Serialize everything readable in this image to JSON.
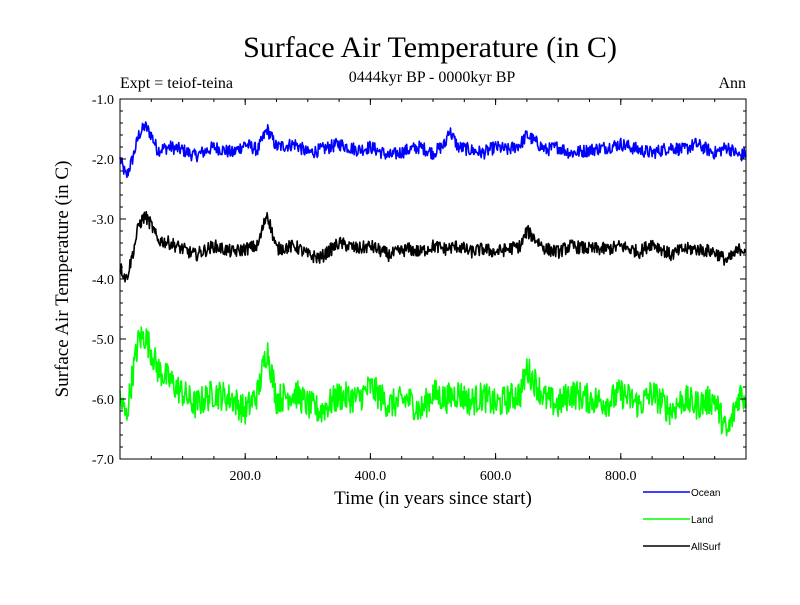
{
  "chart_data": {
    "type": "line",
    "title": "Surface Air Temperature (in C)",
    "subtitle": "0444kyr BP - 0000kyr BP",
    "expt_label": "Expt = teiof-teina",
    "season_label": "Ann",
    "xlabel": "Time (in years since start)",
    "ylabel": "Surface Air Temperature (in C)",
    "xlim": [
      0,
      1000
    ],
    "ylim": [
      -7.0,
      -1.0
    ],
    "x_ticks": [
      {
        "value": 200,
        "label": "200.0"
      },
      {
        "value": 400,
        "label": "400.0"
      },
      {
        "value": 600,
        "label": "600.0"
      },
      {
        "value": 800,
        "label": "800.0"
      }
    ],
    "y_ticks": [
      {
        "value": -1.0,
        "label": "-1.0"
      },
      {
        "value": -2.0,
        "label": "-2.0"
      },
      {
        "value": -3.0,
        "label": "-3.0"
      },
      {
        "value": -4.0,
        "label": "-4.0"
      },
      {
        "value": -5.0,
        "label": "-5.0"
      },
      {
        "value": -6.0,
        "label": "-6.0"
      },
      {
        "value": -7.0,
        "label": "-7.0"
      }
    ],
    "grid": false,
    "legend_position": "bottom-right, outside plot",
    "series": [
      {
        "name": "Ocean",
        "color": "#0000ff",
        "x": [
          0,
          10,
          20,
          30,
          40,
          50,
          60,
          80,
          100,
          120,
          150,
          180,
          200,
          220,
          235,
          250,
          280,
          300,
          320,
          350,
          380,
          400,
          430,
          460,
          480,
          500,
          520,
          525,
          540,
          560,
          580,
          600,
          620,
          640,
          650,
          680,
          700,
          720,
          750,
          780,
          800,
          830,
          850,
          880,
          900,
          920,
          950,
          970,
          990,
          1000
        ],
        "values": [
          -2.0,
          -2.3,
          -2.0,
          -1.6,
          -1.45,
          -1.6,
          -1.85,
          -1.8,
          -1.85,
          -1.95,
          -1.8,
          -1.9,
          -1.75,
          -1.85,
          -1.5,
          -1.8,
          -1.75,
          -1.9,
          -1.85,
          -1.75,
          -1.85,
          -1.8,
          -1.95,
          -1.85,
          -1.8,
          -1.9,
          -1.75,
          -1.5,
          -1.8,
          -1.85,
          -1.9,
          -1.8,
          -1.85,
          -1.75,
          -1.6,
          -1.85,
          -1.8,
          -1.9,
          -1.85,
          -1.8,
          -1.75,
          -1.85,
          -1.9,
          -1.8,
          -1.85,
          -1.75,
          -1.9,
          -1.8,
          -1.95,
          -1.9
        ]
      },
      {
        "name": "Land",
        "color": "#00ff00",
        "x": [
          0,
          10,
          20,
          30,
          40,
          50,
          60,
          80,
          100,
          120,
          150,
          180,
          200,
          220,
          235,
          250,
          280,
          300,
          320,
          350,
          380,
          400,
          430,
          460,
          480,
          500,
          520,
          540,
          560,
          580,
          600,
          620,
          640,
          650,
          680,
          700,
          720,
          750,
          780,
          800,
          830,
          850,
          880,
          900,
          920,
          950,
          970,
          990,
          1000
        ],
        "values": [
          -6.0,
          -6.3,
          -5.6,
          -5.0,
          -4.95,
          -5.2,
          -5.5,
          -5.7,
          -5.9,
          -6.1,
          -5.9,
          -6.0,
          -6.2,
          -5.9,
          -5.15,
          -6.0,
          -5.9,
          -6.1,
          -6.2,
          -5.95,
          -6.0,
          -5.8,
          -6.1,
          -6.0,
          -6.2,
          -5.9,
          -6.0,
          -5.9,
          -6.05,
          -5.95,
          -6.1,
          -6.0,
          -5.9,
          -5.5,
          -6.0,
          -6.1,
          -5.9,
          -6.0,
          -6.05,
          -5.9,
          -6.1,
          -5.9,
          -6.2,
          -6.0,
          -6.1,
          -6.0,
          -6.6,
          -5.9,
          -6.0
        ]
      },
      {
        "name": "AllSurf",
        "color": "#000000",
        "x": [
          0,
          10,
          20,
          30,
          40,
          50,
          60,
          80,
          100,
          120,
          150,
          180,
          200,
          220,
          235,
          250,
          280,
          300,
          320,
          350,
          380,
          400,
          430,
          460,
          480,
          500,
          520,
          540,
          560,
          580,
          600,
          620,
          640,
          650,
          680,
          700,
          720,
          750,
          780,
          800,
          830,
          850,
          880,
          900,
          920,
          950,
          970,
          990,
          1000
        ],
        "values": [
          -3.8,
          -4.0,
          -3.6,
          -3.1,
          -2.95,
          -3.1,
          -3.35,
          -3.4,
          -3.5,
          -3.6,
          -3.45,
          -3.55,
          -3.5,
          -3.45,
          -2.9,
          -3.5,
          -3.45,
          -3.6,
          -3.65,
          -3.4,
          -3.5,
          -3.45,
          -3.6,
          -3.5,
          -3.55,
          -3.45,
          -3.5,
          -3.45,
          -3.55,
          -3.5,
          -3.55,
          -3.5,
          -3.45,
          -3.2,
          -3.5,
          -3.55,
          -3.45,
          -3.5,
          -3.5,
          -3.45,
          -3.55,
          -3.4,
          -3.6,
          -3.5,
          -3.5,
          -3.55,
          -3.7,
          -3.5,
          -3.5
        ]
      }
    ]
  }
}
